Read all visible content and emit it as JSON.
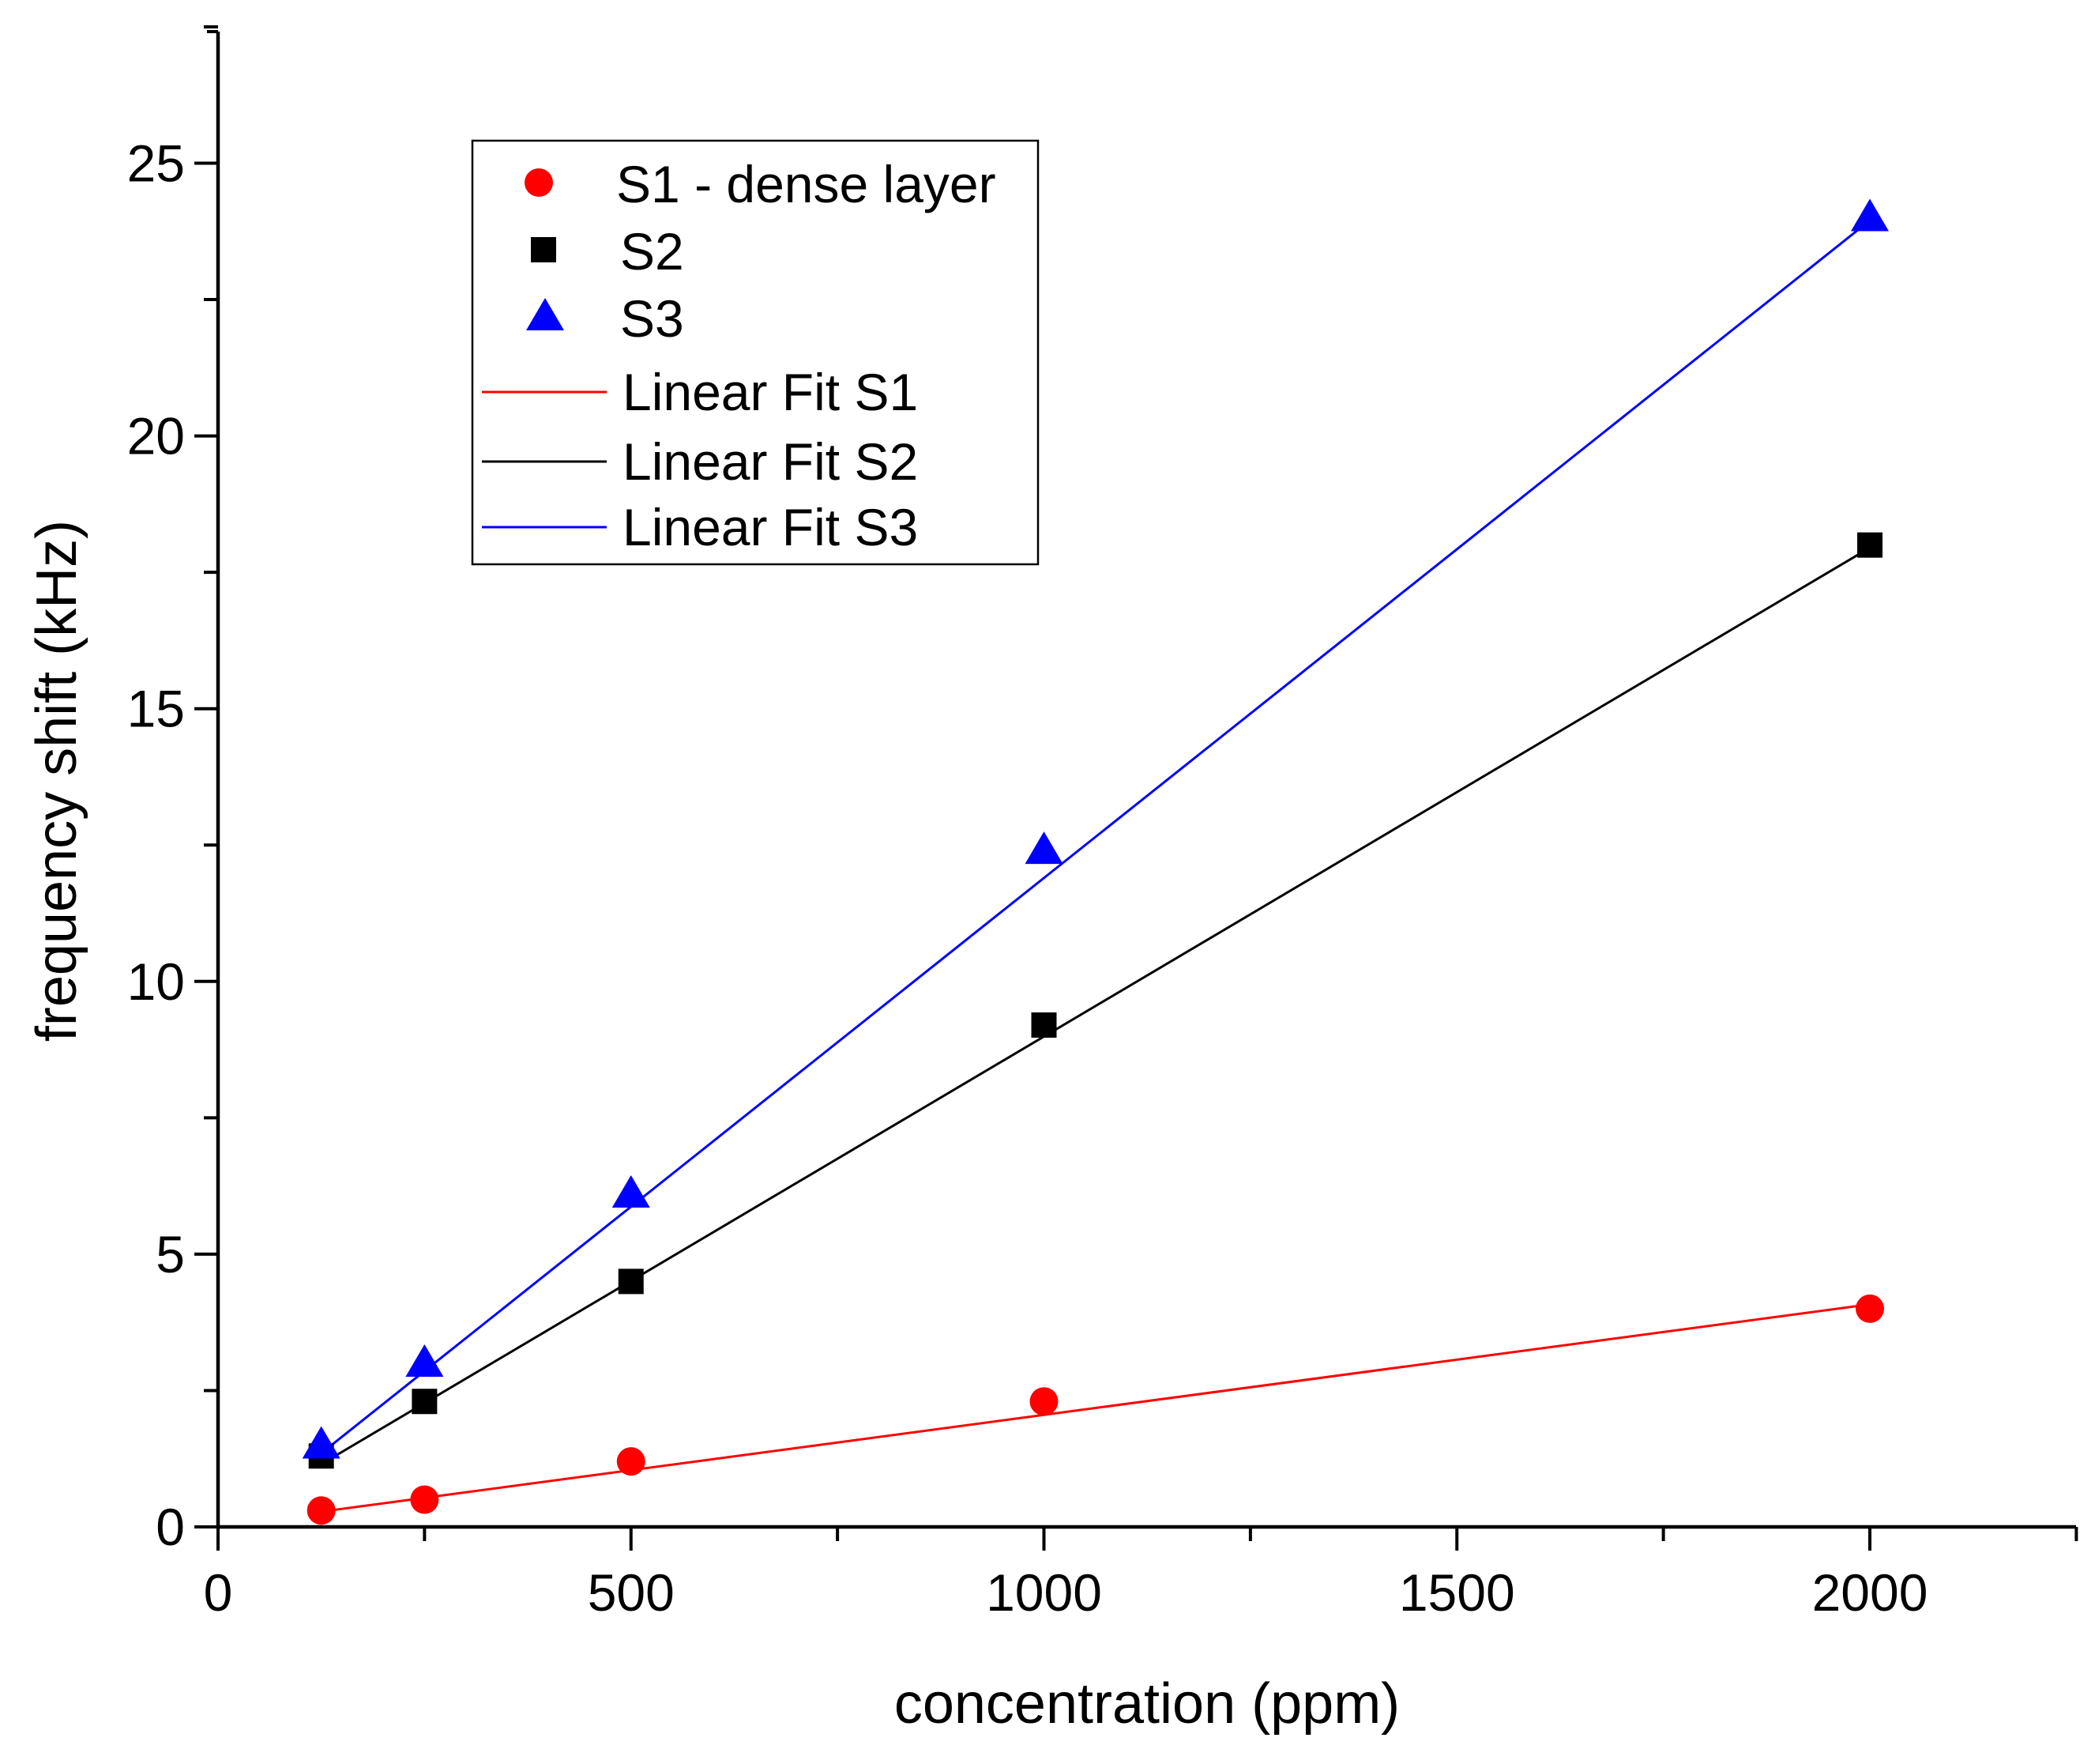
{
  "chart_data": {
    "type": "scatter",
    "title": "",
    "xlabel": "concentration (ppm)",
    "ylabel": "frequency shift (kHz)",
    "xlim": [
      0,
      2250
    ],
    "ylim": [
      0,
      27.5
    ],
    "x_ticks": [
      0,
      500,
      1000,
      1500,
      2000
    ],
    "x_tick_labels": [
      "0",
      "500",
      "1000",
      "1500",
      "2000"
    ],
    "y_ticks": [
      0,
      5,
      10,
      15,
      20,
      25
    ],
    "y_tick_labels": [
      "0",
      "5",
      "10",
      "15",
      "20",
      "25"
    ],
    "legend_position": "top-left",
    "series": [
      {
        "name": "S1 - dense layer",
        "marker": "circle",
        "color": "#ff0000",
        "x": [
          125,
          250,
          500,
          1000,
          2000
        ],
        "y": [
          0.3,
          0.5,
          1.2,
          2.3,
          4.0
        ]
      },
      {
        "name": "S2",
        "marker": "square",
        "color": "#000000",
        "x": [
          125,
          250,
          500,
          1000,
          2000
        ],
        "y": [
          1.3,
          2.3,
          4.5,
          9.2,
          18.0
        ]
      },
      {
        "name": "S3",
        "marker": "triangle",
        "color": "#0000ff",
        "x": [
          125,
          250,
          500,
          1000,
          2000
        ],
        "y": [
          1.5,
          3.0,
          6.1,
          12.4,
          24.0
        ]
      }
    ],
    "fits": [
      {
        "name": "Linear Fit S1",
        "color": "#ff0000",
        "x": [
          125,
          2000
        ],
        "y": [
          0.28,
          4.08
        ]
      },
      {
        "name": "Linear Fit S2",
        "color": "#000000",
        "x": [
          125,
          2000
        ],
        "y": [
          1.15,
          17.95
        ]
      },
      {
        "name": "Linear Fit S3",
        "color": "#0000ff",
        "x": [
          125,
          2000
        ],
        "y": [
          1.35,
          23.95
        ]
      }
    ]
  }
}
